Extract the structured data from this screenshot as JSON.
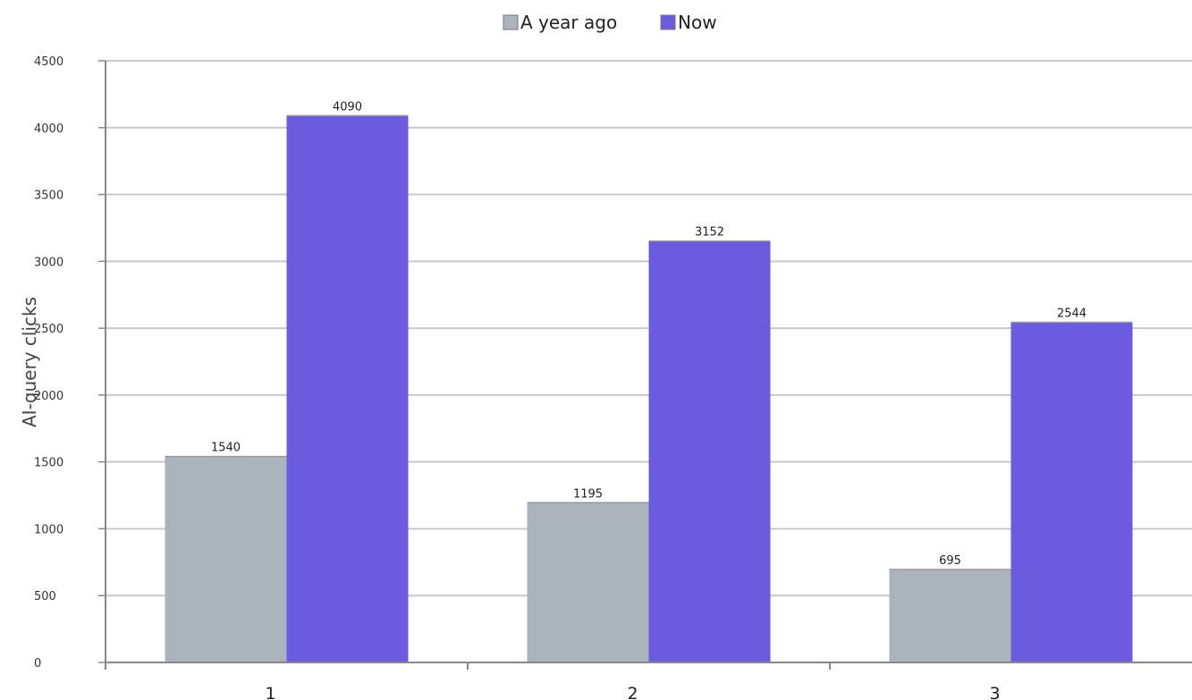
{
  "chart_data": {
    "type": "bar",
    "categories": [
      "1",
      "2",
      "3"
    ],
    "series": [
      {
        "name": "A year ago",
        "values": [
          1540,
          1195,
          695
        ],
        "color": "#aab3bb"
      },
      {
        "name": "Now",
        "values": [
          4090,
          3152,
          2544
        ],
        "color": "#6b5bdf"
      }
    ],
    "ylabel": "AI-query clicks",
    "xlabel": "",
    "title": "",
    "ylim": [
      0,
      4500
    ],
    "yticks": [
      0,
      500,
      1000,
      1500,
      2000,
      2500,
      3000,
      3500,
      4000,
      4500
    ],
    "grid": true,
    "legend_position": "top-center",
    "data_labels": true
  }
}
